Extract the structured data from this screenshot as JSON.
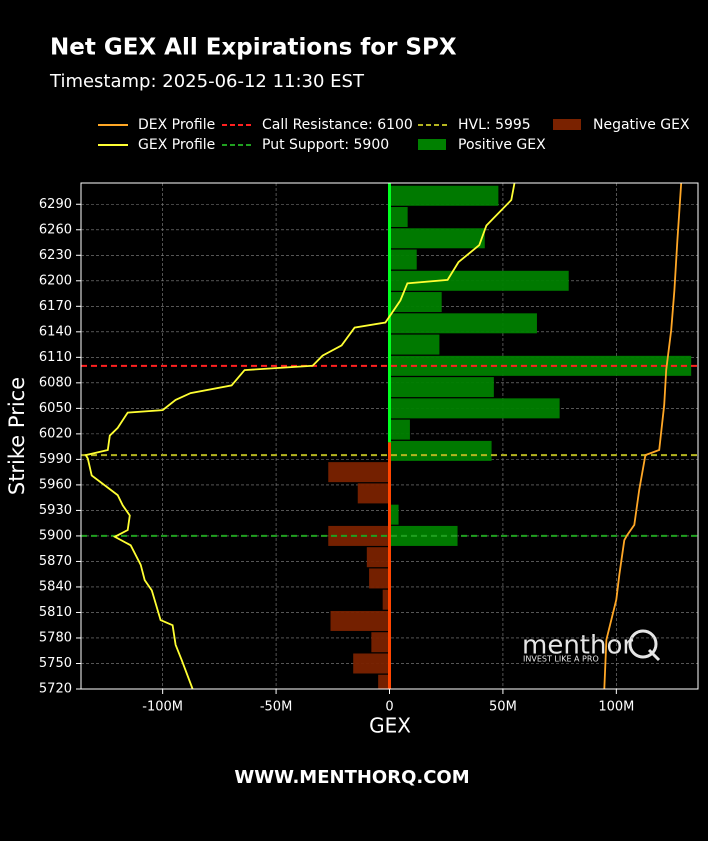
{
  "chart_data": {
    "type": "hbar-profile",
    "title": "Net GEX All Expirations for SPX",
    "subtitle": "Timestamp: 2025-06-12 11:30 EST",
    "xlabel": "GEX",
    "ylabel": "Strike Price",
    "xlim": [
      -136000000,
      136000000
    ],
    "ylim": [
      5720,
      6315
    ],
    "xticks": [
      {
        "value": -100000000,
        "label": "-100M"
      },
      {
        "value": -50000000,
        "label": "-50M"
      },
      0,
      {
        "value": 50000000,
        "label": "50M"
      },
      {
        "value": 100000000,
        "label": "100M"
      }
    ],
    "yticks": [
      5720,
      5750,
      5780,
      5810,
      5840,
      5870,
      5900,
      5930,
      5960,
      5990,
      6020,
      6050,
      6080,
      6110,
      6140,
      6170,
      6200,
      6230,
      6260,
      6290
    ],
    "grid": true,
    "bar_series": [
      {
        "name": "Positive GEX",
        "color": "#008000",
        "y": [
          6300,
          6275,
          6250,
          6225,
          6200,
          6175,
          6150,
          6125,
          6100,
          6075,
          6050,
          6025,
          6000,
          5925,
          5900
        ],
        "values": [
          48000000,
          8000000,
          42000000,
          12000000,
          79000000,
          23000000,
          65000000,
          22000000,
          133000000,
          46000000,
          75000000,
          9000000,
          45000000,
          4000000,
          30000000
        ]
      },
      {
        "name": "Negative GEX",
        "color": "#7a2200",
        "y": [
          5975,
          5950,
          5900,
          5875,
          5850,
          5825,
          5800,
          5775,
          5750,
          5725
        ],
        "values": [
          -27000000,
          -14000000,
          -27000000,
          -10000000,
          -9000000,
          -3000000,
          -26000000,
          -8000000,
          -16000000,
          -5000000
        ]
      }
    ],
    "line_series": [
      {
        "name": "DEX Profile",
        "color": "#ffa726",
        "y": [
          5720,
          5778,
          5825,
          5854,
          5895,
          5901,
          5913,
          5954,
          5995,
          6001,
          6054,
          6095,
          6142,
          6189,
          6248,
          6283,
          6315
        ],
        "values": [
          94700000,
          95600000,
          100000000,
          101300000,
          103500000,
          104800000,
          107900000,
          110100000,
          112800000,
          118900000,
          121100000,
          122000000,
          124200000,
          125600000,
          126900000,
          127800000,
          128600000
        ]
      },
      {
        "name": "GEX Profile",
        "color": "#ffff33",
        "y": [
          5720,
          5754,
          5772,
          5795,
          5801,
          5836,
          5848,
          5866,
          5889,
          5899,
          5907,
          5924,
          5936,
          5948,
          5971,
          5991,
          5995,
          6001,
          6018,
          6027,
          6045,
          6048,
          6060,
          6068,
          6077,
          6095,
          6100,
          6112,
          6124,
          6145,
          6151,
          6177,
          6197,
          6201,
          6222,
          6242,
          6265,
          6295,
          6315
        ],
        "values": [
          -86800000,
          -91600000,
          -94300000,
          -95600000,
          -100900000,
          -104800000,
          -107900000,
          -109700000,
          -114100000,
          -121100000,
          -115400000,
          -114500000,
          -117600000,
          -119800000,
          -131300000,
          -133000000,
          -133900000,
          -124200000,
          -123300000,
          -119800000,
          -115400000,
          -100000000,
          -94300000,
          -87700000,
          -69600000,
          -63900000,
          -33900000,
          -29500000,
          -21100000,
          -15400000,
          -1800000,
          4800000,
          7900000,
          25600000,
          30400000,
          39600000,
          42700000,
          53700000,
          55100000
        ]
      }
    ],
    "levels": [
      {
        "name": "Call Resistance: 6100",
        "value": 6100,
        "color": "#ff2020"
      },
      {
        "name": "Put Support: 5900",
        "value": 5900,
        "color": "#20a020"
      },
      {
        "name": "HVL: 5995",
        "value": 5995,
        "color": "#b5b520"
      }
    ]
  },
  "watermark": {
    "brand": "menthor",
    "tagline": "INVEST LIKE A PRO"
  },
  "footer": "WWW.MENTHORQ.COM"
}
